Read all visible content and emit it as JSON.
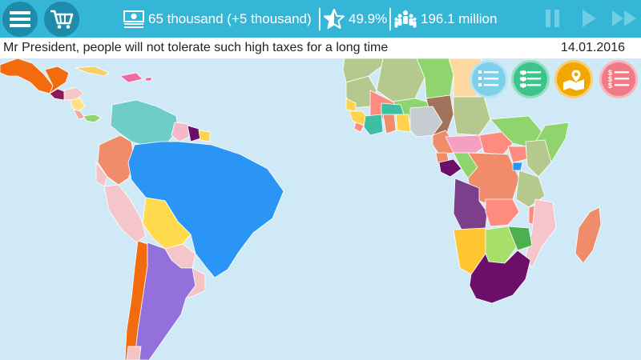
{
  "top_bar": {
    "menu_icon": "hamburger-menu-icon",
    "shop_icon": "shopping-cart-icon",
    "money": "65 thousand (+5 thousand)",
    "rating": "49.9%",
    "population": "196.1 million",
    "controls": [
      "pause-icon",
      "play-icon",
      "fast-forward-icon"
    ]
  },
  "message_bar": {
    "message": "Mr President, people will not tolerate such high taxes for a long time",
    "date": "14.01.2016"
  },
  "actions": [
    {
      "icon": "laws-list-icon",
      "color": "#7ecfe8"
    },
    {
      "icon": "security-list-icon",
      "color": "#3cc48a"
    },
    {
      "icon": "map-location-icon",
      "color": "#f0a800"
    },
    {
      "icon": "budget-list-icon",
      "color": "#f07a86"
    }
  ],
  "colors": {
    "top_bar": "#35b6d6",
    "button": "#1d8ba9",
    "ocean": "#cfe9f7"
  }
}
